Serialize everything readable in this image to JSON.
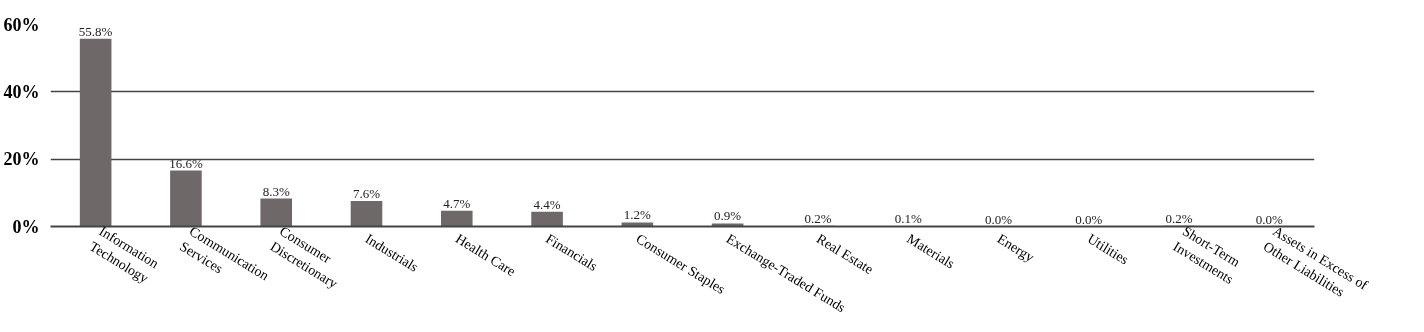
{
  "chart_data": {
    "type": "bar",
    "categories": [
      "Information\nTechnology",
      "Communication\nServices",
      "Consumer\nDiscretionary",
      "Industrials",
      "Health Care",
      "Financials",
      "Consumer Staples",
      "Exchange-Traded Funds",
      "Real Estate",
      "Materials",
      "Energy",
      "Utilities",
      "Short-Term\nInvestments",
      "Assets in Excess of\nOther Liabilities"
    ],
    "values": [
      55.8,
      16.6,
      8.3,
      7.6,
      4.7,
      4.4,
      1.2,
      0.9,
      0.2,
      0.1,
      0.0,
      0.0,
      0.2,
      0.0
    ],
    "color": "#6e6968",
    "value_labels": [
      "55.8%",
      "16.6%",
      "8.3%",
      "7.6%",
      "4.7%",
      "4.4%",
      "1.2%",
      "0.9%",
      "0.2%",
      "0.1%",
      "0.0%",
      "0.0%",
      "0.2%",
      "0.0%"
    ],
    "ylim": [
      0,
      60
    ],
    "yticks": [
      {
        "value": 0,
        "label": "0%"
      },
      {
        "value": 20,
        "label": "20%"
      },
      {
        "value": 40,
        "label": "40%"
      },
      {
        "value": 60,
        "label": "60%"
      }
    ],
    "grid": "y"
  }
}
